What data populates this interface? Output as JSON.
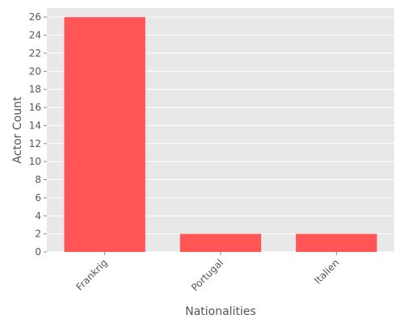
{
  "chart_data": {
    "type": "bar",
    "categories": [
      "Frankrig",
      "Portugal",
      "Italien"
    ],
    "values": [
      26,
      2,
      2
    ],
    "xlabel": "Nationalities",
    "ylabel": "Actor Count",
    "ylim": [
      0,
      27
    ],
    "yticks": [
      0,
      2,
      4,
      6,
      8,
      10,
      12,
      14,
      16,
      18,
      20,
      22,
      24,
      26
    ],
    "grid": true,
    "legend": "none",
    "bar_color": "#ff5555",
    "plot_background": "#e8e8e8",
    "grid_color": "#ffffff"
  }
}
